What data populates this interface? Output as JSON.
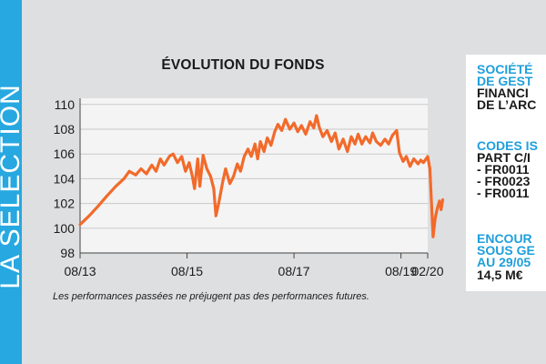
{
  "side_banner": {
    "text": "LA SÉLECTION"
  },
  "footnote": "Les performances passées ne préjugent pas des performances futures.",
  "info_panel": {
    "company_heading": [
      "SOCIÉTÉ",
      "DE GEST"
    ],
    "company_name": [
      "FINANCI",
      "DE L’ARC"
    ],
    "codes_heading": "CODES IS",
    "codes_sub": "PART C/I",
    "codes": [
      "- FR0011",
      "- FR0023",
      "- FR0011"
    ],
    "aum_heading": [
      "ENCOUR",
      "SOUS GE",
      "AU 29/05"
    ],
    "aum_value": "14,5  M€"
  },
  "colors": {
    "accent_blue": "#27a8e0",
    "line": "#f26a2a",
    "plot_background": "#f4f4f4",
    "grid": "#c9c9c9"
  },
  "chart_data": {
    "type": "line",
    "title": "ÉVOLUTION DU FONDS",
    "xlabel": "",
    "ylabel": "",
    "x_ticks": [
      {
        "label": "08/13",
        "t": 2013.58
      },
      {
        "label": "08/15",
        "t": 2015.58
      },
      {
        "label": "08/17",
        "t": 2017.58
      },
      {
        "label": "08/19",
        "t": 2019.58
      },
      {
        "label": "02/20",
        "t": 2020.08
      }
    ],
    "y_ticks": [
      98,
      100,
      102,
      104,
      106,
      108,
      110
    ],
    "xlim": [
      2013.58,
      2020.08
    ],
    "ylim": [
      98,
      110.5
    ],
    "grid": true,
    "series": [
      {
        "values": [
          [
            2013.58,
            100.3
          ],
          [
            2013.75,
            101.0
          ],
          [
            2013.92,
            101.8
          ],
          [
            2014.08,
            102.6
          ],
          [
            2014.25,
            103.4
          ],
          [
            2014.4,
            104.0
          ],
          [
            2014.5,
            104.6
          ],
          [
            2014.62,
            104.3
          ],
          [
            2014.72,
            104.8
          ],
          [
            2014.82,
            104.4
          ],
          [
            2014.92,
            105.1
          ],
          [
            2015.0,
            104.6
          ],
          [
            2015.08,
            105.6
          ],
          [
            2015.15,
            105.1
          ],
          [
            2015.25,
            105.8
          ],
          [
            2015.32,
            106.0
          ],
          [
            2015.4,
            105.3
          ],
          [
            2015.48,
            105.8
          ],
          [
            2015.55,
            104.6
          ],
          [
            2015.62,
            105.3
          ],
          [
            2015.68,
            104.2
          ],
          [
            2015.72,
            103.2
          ],
          [
            2015.78,
            105.6
          ],
          [
            2015.82,
            103.4
          ],
          [
            2015.88,
            105.9
          ],
          [
            2015.95,
            104.8
          ],
          [
            2016.02,
            104.2
          ],
          [
            2016.08,
            103.2
          ],
          [
            2016.12,
            101.0
          ],
          [
            2016.18,
            102.2
          ],
          [
            2016.25,
            103.8
          ],
          [
            2016.3,
            104.8
          ],
          [
            2016.38,
            103.6
          ],
          [
            2016.45,
            104.2
          ],
          [
            2016.52,
            105.2
          ],
          [
            2016.58,
            104.6
          ],
          [
            2016.65,
            105.8
          ],
          [
            2016.72,
            106.4
          ],
          [
            2016.78,
            105.8
          ],
          [
            2016.85,
            106.8
          ],
          [
            2016.9,
            105.6
          ],
          [
            2016.95,
            107.0
          ],
          [
            2017.02,
            106.2
          ],
          [
            2017.08,
            107.3
          ],
          [
            2017.15,
            106.7
          ],
          [
            2017.22,
            107.8
          ],
          [
            2017.28,
            108.4
          ],
          [
            2017.35,
            107.9
          ],
          [
            2017.42,
            108.8
          ],
          [
            2017.5,
            108.0
          ],
          [
            2017.58,
            108.5
          ],
          [
            2017.65,
            107.8
          ],
          [
            2017.72,
            108.3
          ],
          [
            2017.8,
            107.6
          ],
          [
            2017.88,
            108.6
          ],
          [
            2017.95,
            108.1
          ],
          [
            2018.0,
            109.1
          ],
          [
            2018.05,
            108.2
          ],
          [
            2018.12,
            107.4
          ],
          [
            2018.2,
            107.9
          ],
          [
            2018.28,
            107.0
          ],
          [
            2018.35,
            107.7
          ],
          [
            2018.42,
            106.4
          ],
          [
            2018.5,
            107.2
          ],
          [
            2018.58,
            106.2
          ],
          [
            2018.65,
            107.4
          ],
          [
            2018.72,
            106.8
          ],
          [
            2018.78,
            107.6
          ],
          [
            2018.85,
            106.8
          ],
          [
            2018.92,
            107.4
          ],
          [
            2019.0,
            106.9
          ],
          [
            2019.05,
            107.7
          ],
          [
            2019.12,
            107.0
          ],
          [
            2019.2,
            106.7
          ],
          [
            2019.28,
            107.2
          ],
          [
            2019.35,
            106.8
          ],
          [
            2019.42,
            107.5
          ],
          [
            2019.5,
            107.9
          ],
          [
            2019.55,
            106.1
          ],
          [
            2019.62,
            105.4
          ],
          [
            2019.68,
            105.8
          ],
          [
            2019.75,
            105.0
          ],
          [
            2019.82,
            105.6
          ],
          [
            2019.9,
            105.2
          ],
          [
            2019.95,
            105.5
          ],
          [
            2020.0,
            105.3
          ],
          [
            2020.05,
            105.6
          ],
          [
            2020.08,
            105.8
          ],
          [
            2020.12,
            104.8
          ],
          [
            2020.18,
            99.3
          ],
          [
            2020.22,
            100.8
          ],
          [
            2020.26,
            101.6
          ],
          [
            2020.3,
            102.2
          ],
          [
            2020.33,
            101.5
          ],
          [
            2020.36,
            102.3
          ]
        ]
      }
    ]
  }
}
